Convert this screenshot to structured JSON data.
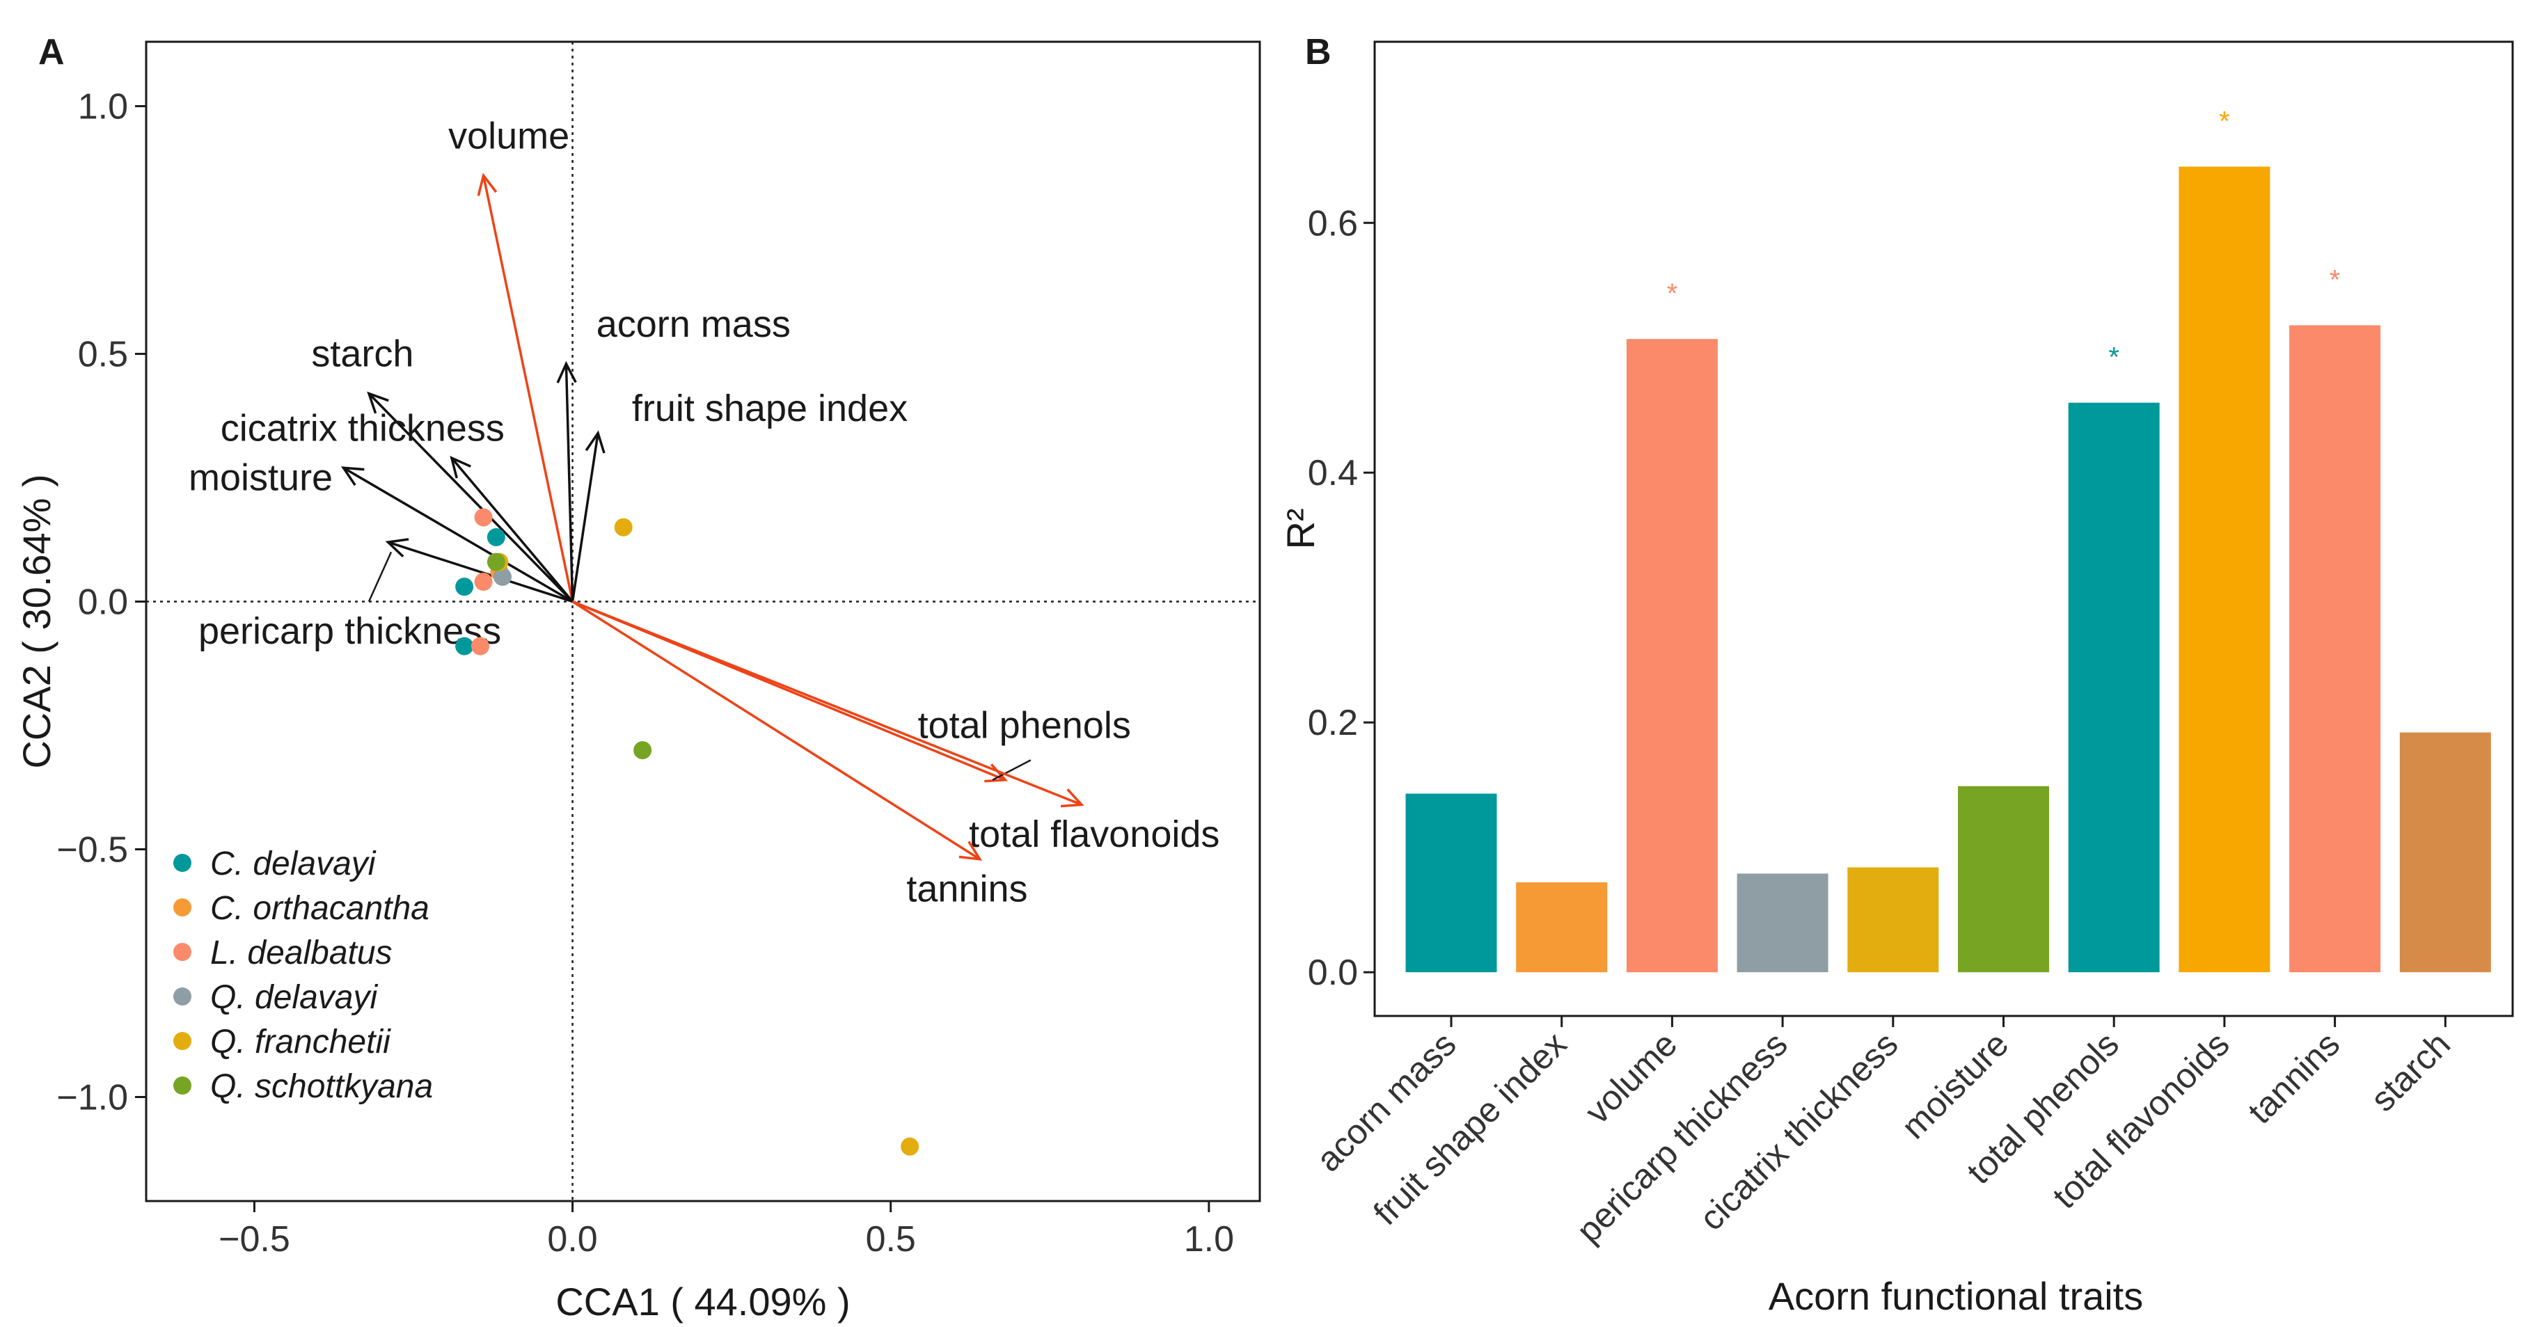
{
  "chart_data": [
    {
      "panel": "A",
      "type": "scatter",
      "xlabel": "CCA1 ( 44.09% )",
      "ylabel": "CCA2 ( 30.64% )",
      "xlim": [
        -0.67,
        1.08
      ],
      "ylim": [
        -1.21,
        1.13
      ],
      "x_ticks": [
        -0.5,
        0.0,
        0.5,
        1.0
      ],
      "x_tick_labels": [
        "-0.5",
        "0.0",
        "0.5",
        "1.0"
      ],
      "y_ticks": [
        1.0,
        0.5,
        0.0,
        -0.5,
        -1.0
      ],
      "y_tick_labels": [
        "1.0",
        "0.5",
        "0.0",
        "-0.5",
        "-1.0"
      ],
      "reference_lines": "dotted lines at x = 0 and y = 0",
      "grid": false,
      "legend_placement": "bottom-left",
      "vectors": [
        {
          "name": "volume",
          "x": -0.14,
          "y": 0.86,
          "color": "#ee4316",
          "label_x": -0.1,
          "label_y": 0.94
        },
        {
          "name": "acorn mass",
          "x": -0.01,
          "y": 0.48,
          "color": "#111111",
          "label_x": 0.19,
          "label_y": 0.56
        },
        {
          "name": "fruit shape index",
          "x": 0.04,
          "y": 0.34,
          "color": "#111111",
          "label_x": 0.31,
          "label_y": 0.39
        },
        {
          "name": "starch",
          "x": -0.32,
          "y": 0.42,
          "color": "#111111",
          "label_x": -0.33,
          "label_y": 0.5
        },
        {
          "name": "cicatrix thickness",
          "x": -0.19,
          "y": 0.29,
          "color": "#111111",
          "label_x": -0.33,
          "label_y": 0.35
        },
        {
          "name": "moisture",
          "x": -0.36,
          "y": 0.27,
          "color": "#111111",
          "label_x": -0.49,
          "label_y": 0.25
        },
        {
          "name": "pericarp thickness",
          "x": -0.29,
          "y": 0.12,
          "color": "#111111",
          "label_x": -0.35,
          "label_y": -0.06,
          "leader_from": [
            -0.285,
            0.1
          ],
          "leader_to": [
            -0.32,
            0.0
          ]
        },
        {
          "name": "total phenols",
          "x": 0.68,
          "y": -0.36,
          "color": "#ee4316",
          "label_x": 0.71,
          "label_y": -0.25,
          "leader_from": [
            0.66,
            -0.36
          ],
          "leader_to": [
            0.72,
            -0.32
          ]
        },
        {
          "name": "total flavonoids",
          "x": 0.8,
          "y": -0.41,
          "color": "#ee4316",
          "label_x": 0.82,
          "label_y": -0.47
        },
        {
          "name": "tannins",
          "x": 0.64,
          "y": -0.52,
          "color": "#ee4316",
          "label_x": 0.62,
          "label_y": -0.58
        }
      ],
      "series": [
        {
          "name": "C. delavayi",
          "color": "#00999b",
          "points": [
            {
              "x": -0.12,
              "y": 0.13
            },
            {
              "x": -0.17,
              "y": 0.03
            },
            {
              "x": -0.17,
              "y": -0.09
            }
          ]
        },
        {
          "name": "C. orthacantha",
          "color": "#f59a35",
          "points": [
            {
              "x": -0.115,
              "y": 0.06
            }
          ]
        },
        {
          "name": "L. dealbatus",
          "color": "#fa8a69",
          "points": [
            {
              "x": -0.14,
              "y": 0.17
            },
            {
              "x": -0.14,
              "y": 0.04
            },
            {
              "x": -0.145,
              "y": -0.09
            }
          ]
        },
        {
          "name": "Q. delavayi",
          "color": "#8f9ea5",
          "points": [
            {
              "x": -0.11,
              "y": 0.05
            }
          ]
        },
        {
          "name": "Q. franchetii",
          "color": "#e3ad0f",
          "points": [
            {
              "x": 0.08,
              "y": 0.15
            },
            {
              "x": 0.53,
              "y": -1.1
            },
            {
              "x": -0.115,
              "y": 0.08
            }
          ]
        },
        {
          "name": "Q. schottkyana",
          "color": "#78a424",
          "points": [
            {
              "x": 0.11,
              "y": -0.3
            },
            {
              "x": -0.12,
              "y": 0.08
            }
          ]
        }
      ]
    },
    {
      "panel": "B",
      "type": "bar",
      "xlabel": "Acorn functional traits",
      "ylabel": "R²",
      "ylim": [
        -0.035,
        0.745
      ],
      "y_ticks": [
        0.0,
        0.2,
        0.4,
        0.6
      ],
      "y_tick_labels": [
        "0.0",
        "0.2",
        "0.4",
        "0.6"
      ],
      "grid": false,
      "categories": [
        "acorn mass",
        "fruit shape index",
        "volume",
        "pericarp thickness",
        "cicatrix thickness",
        "moisture",
        "total phenols",
        "total flavonoids",
        "tannins",
        "starch"
      ],
      "values": [
        0.143,
        0.072,
        0.507,
        0.079,
        0.084,
        0.149,
        0.456,
        0.645,
        0.518,
        0.192
      ],
      "colors": [
        "#00999b",
        "#f59a35",
        "#fa8a69",
        "#8f9ea5",
        "#e3ad0f",
        "#78a424",
        "#00999b",
        "#f8a600",
        "#fa8a69",
        "#d78b48"
      ],
      "significance": [
        "",
        "",
        "*",
        "",
        "",
        "",
        "*",
        "*",
        "*",
        ""
      ]
    }
  ],
  "panels": {
    "a": {
      "letter": "A"
    },
    "b": {
      "letter": "B"
    }
  }
}
